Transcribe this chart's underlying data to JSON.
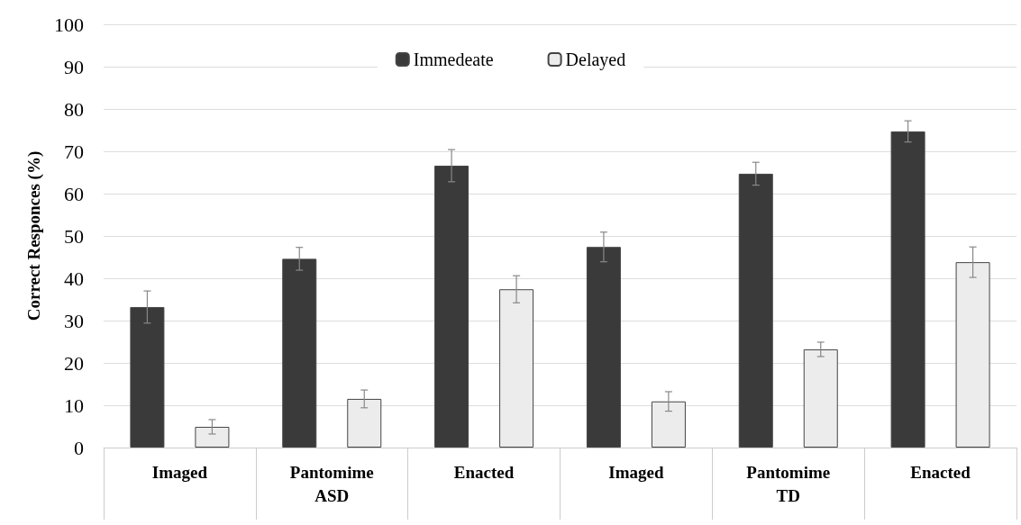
{
  "chart_data": {
    "type": "bar",
    "ylabel": "Correct Responces (%)",
    "categories": [
      "Imaged",
      "Pantomime",
      "Enacted",
      "Imaged",
      "Pantomime",
      "Enacted"
    ],
    "annotations": [
      "ASD",
      "TD"
    ],
    "series": [
      {
        "name": "Immedeate",
        "color": "#3a3a3a",
        "values": [
          33.2,
          44.6,
          66.6,
          47.4,
          64.7,
          74.7
        ],
        "errors": [
          3.8,
          2.7,
          3.8,
          3.5,
          2.7,
          2.5
        ]
      },
      {
        "name": "Delayed",
        "color": "#ececec",
        "values": [
          4.9,
          11.5,
          37.4,
          10.9,
          23.2,
          43.8
        ],
        "errors": [
          1.7,
          2.1,
          3.2,
          2.3,
          1.7,
          3.6
        ]
      }
    ],
    "ylim": [
      0,
      100
    ],
    "yticks": [
      0,
      10,
      20,
      30,
      40,
      50,
      60,
      70,
      80,
      90,
      100
    ],
    "grid": "y",
    "legend": "top"
  }
}
